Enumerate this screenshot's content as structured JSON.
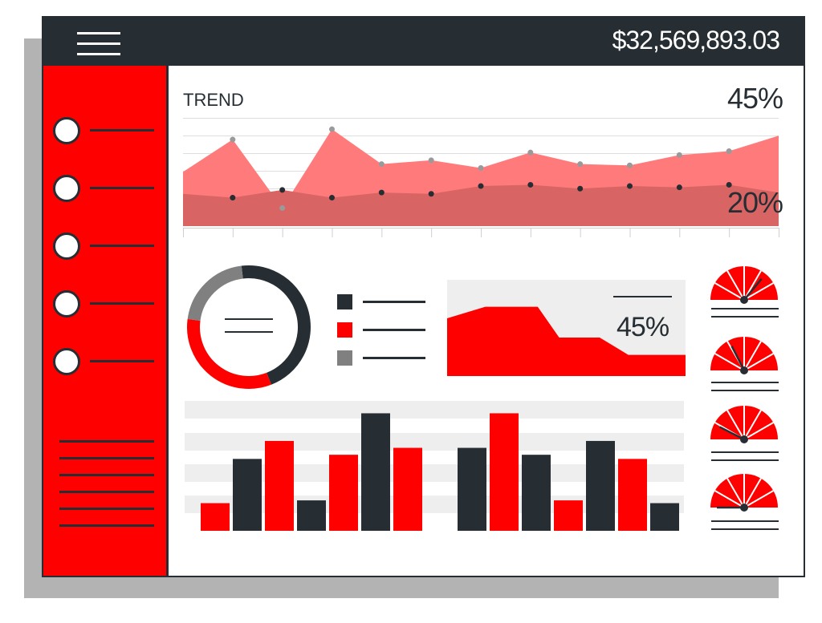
{
  "header": {
    "menu_icon": "hamburger-icon",
    "total_value": "$32,569,893.03"
  },
  "colors": {
    "dark": "#262e33",
    "red": "#ff0000",
    "light_red": "#ff7b7b",
    "mid_red": "#d96464",
    "grey": "#808080",
    "panel_grey": "#eeeeee"
  },
  "sidebar": {
    "items": [
      {
        "icon": "radio-circle-icon"
      },
      {
        "icon": "radio-circle-icon"
      },
      {
        "icon": "radio-circle-icon"
      },
      {
        "icon": "radio-circle-icon"
      },
      {
        "icon": "radio-circle-icon"
      }
    ]
  },
  "trend": {
    "title": "TREND",
    "top_percent": "45%",
    "bottom_percent": "20%"
  },
  "area_card": {
    "percent": "45%"
  },
  "chart_data": [
    {
      "type": "area",
      "title": "TREND",
      "series": [
        {
          "values": [
            42,
            67,
            14,
            75,
            48,
            51,
            45,
            57,
            48,
            47,
            55,
            58,
            70
          ]
        },
        {
          "values": [
            25,
            22,
            28,
            22,
            26,
            25,
            31,
            32,
            29,
            31,
            30,
            32,
            26
          ]
        }
      ]
    },
    {
      "type": "pie",
      "slices": [
        {
          "color": "#262e33",
          "value": 46
        },
        {
          "color": "#ff0000",
          "value": 33
        },
        {
          "color": "#808080",
          "value": 21
        }
      ]
    },
    {
      "type": "area",
      "values": [
        60,
        72,
        72,
        72,
        40,
        40,
        22,
        22
      ]
    },
    {
      "type": "bar",
      "values": [
        20,
        52,
        65,
        22,
        55,
        85,
        60,
        60,
        85,
        55,
        22,
        65,
        52,
        20
      ],
      "colors": [
        "#ff0000",
        "#262e33",
        "#ff0000",
        "#262e33",
        "#ff0000",
        "#262e33",
        "#ff0000",
        "#262e33",
        "#ff0000",
        "#262e33",
        "#ff0000",
        "#262e33",
        "#ff0000",
        "#262e33"
      ]
    },
    {
      "type": "gauge",
      "levels": [
        0.72,
        0.35,
        0.15,
        0.0
      ]
    }
  ]
}
